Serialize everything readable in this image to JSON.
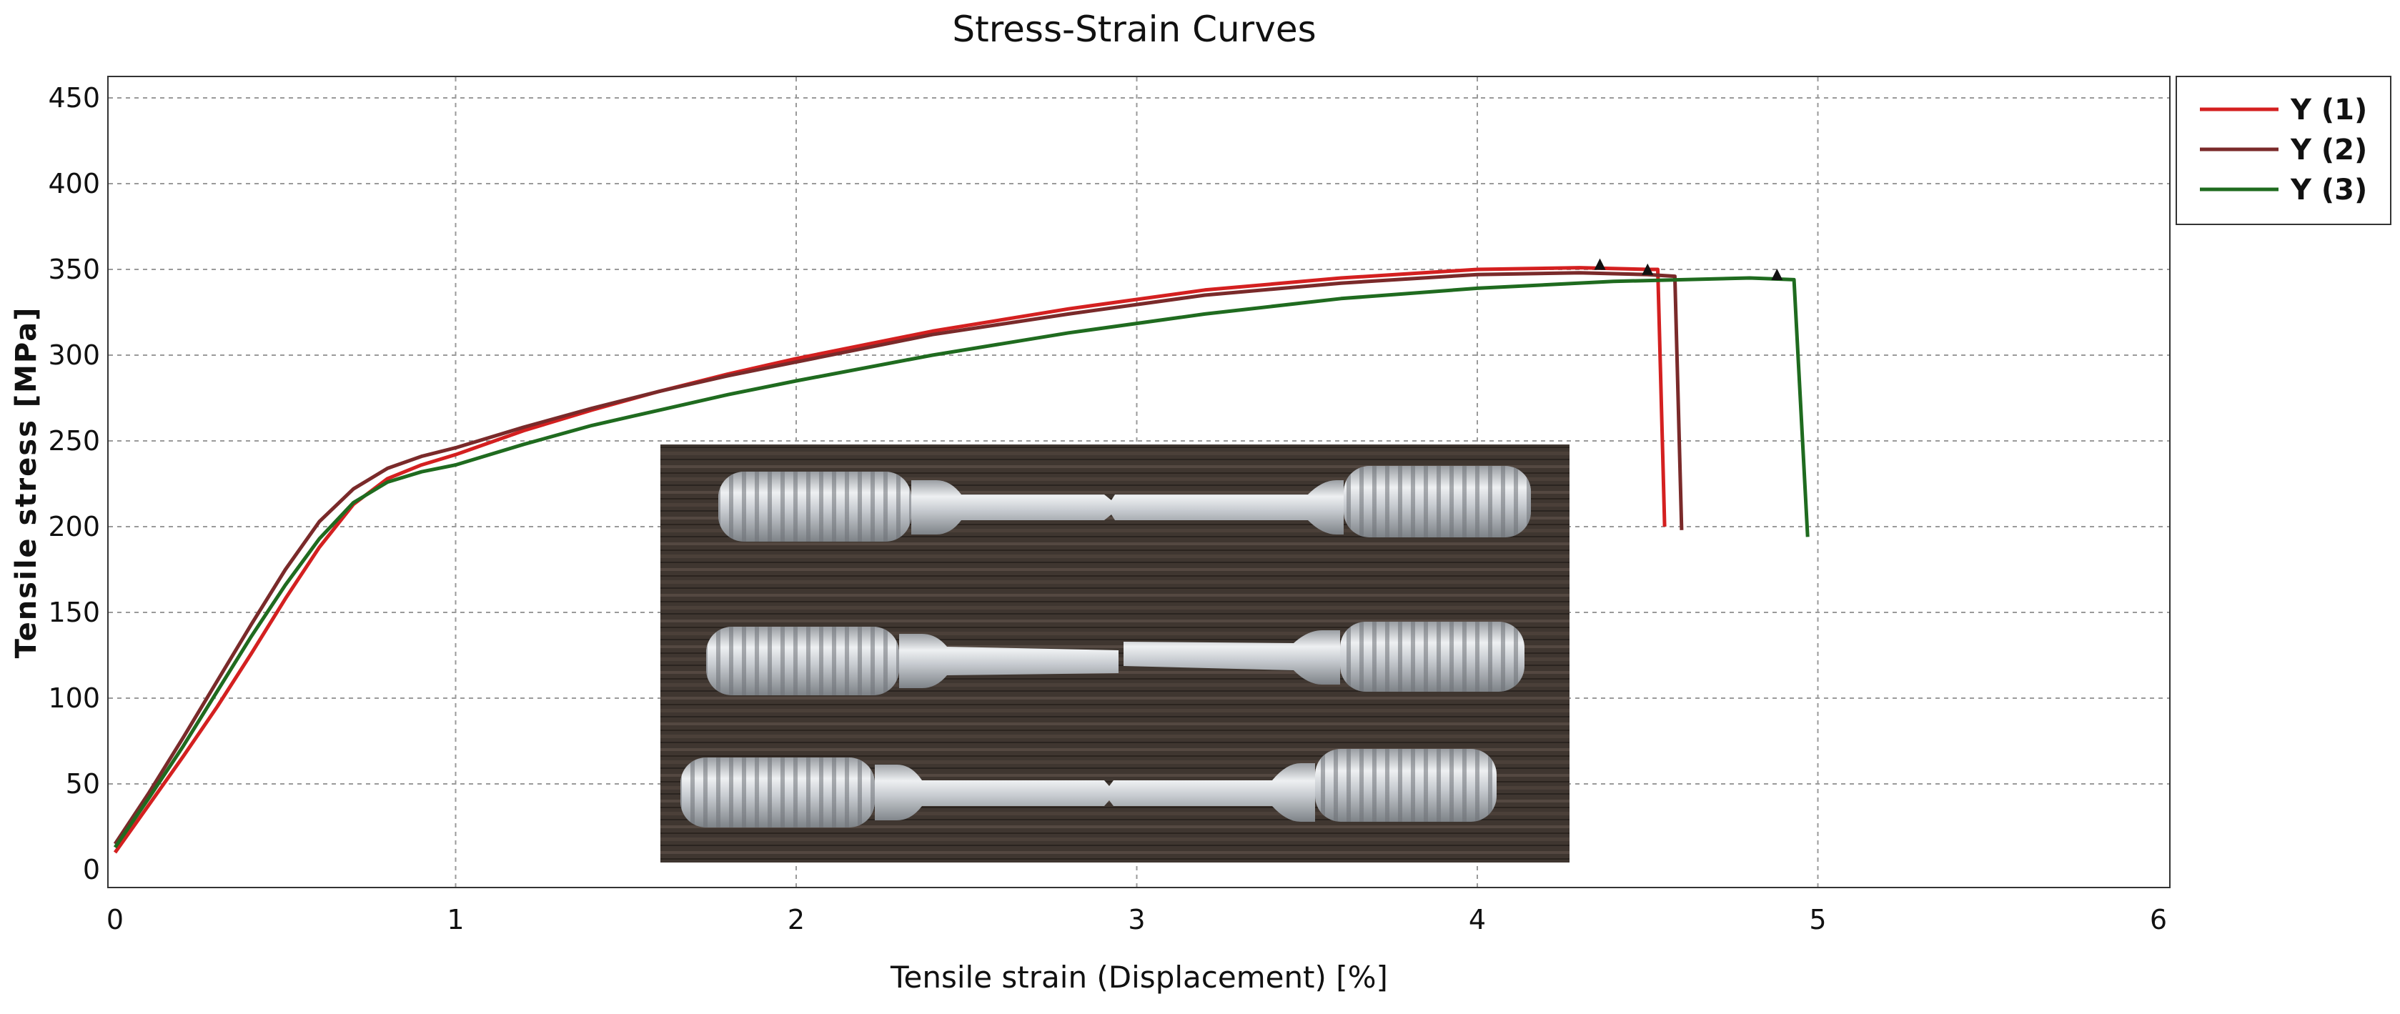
{
  "chart_data": {
    "type": "line",
    "title": "Stress-Strain Curves",
    "xlabel": "Tensile strain (Displacement) [%]",
    "ylabel": "Tensile stress [MPa]",
    "xlim": [
      0,
      6
    ],
    "ylim": [
      0,
      460
    ],
    "x_ticks": [
      "0",
      "1",
      "2",
      "3",
      "4",
      "5",
      "6"
    ],
    "y_ticks": [
      "0",
      "50",
      "100",
      "150",
      "200",
      "250",
      "300",
      "350",
      "400",
      "450"
    ],
    "grid": true,
    "legend_position": "outside-right-top",
    "inset": "photograph of three fractured threaded tensile specimens labelled 1, 2, 3",
    "series": [
      {
        "name": "Y (1)",
        "color": "#d42020",
        "x": [
          0,
          0.1,
          0.2,
          0.3,
          0.4,
          0.5,
          0.6,
          0.7,
          0.8,
          0.9,
          1.0,
          1.2,
          1.4,
          1.6,
          1.8,
          2.0,
          2.4,
          2.8,
          3.2,
          3.6,
          4.0,
          4.3,
          4.5,
          4.53,
          4.55
        ],
        "y": [
          10,
          38,
          66,
          95,
          126,
          158,
          188,
          213,
          228,
          236,
          242,
          256,
          268,
          279,
          289,
          298,
          314,
          327,
          338,
          345,
          350,
          351,
          350,
          350,
          200
        ],
        "max_marker": [
          4.36,
          351
        ]
      },
      {
        "name": "Y (2)",
        "color": "#7a2a2a",
        "x": [
          0,
          0.1,
          0.2,
          0.3,
          0.4,
          0.5,
          0.6,
          0.7,
          0.8,
          0.9,
          1.0,
          1.2,
          1.4,
          1.6,
          1.8,
          2.0,
          2.4,
          2.8,
          3.2,
          3.6,
          4.0,
          4.3,
          4.5,
          4.58,
          4.6
        ],
        "y": [
          15,
          45,
          77,
          110,
          143,
          175,
          203,
          222,
          234,
          241,
          246,
          258,
          269,
          279,
          288,
          296,
          312,
          324,
          335,
          342,
          347,
          348,
          347,
          346,
          198
        ],
        "max_marker": [
          4.5,
          348
        ]
      },
      {
        "name": "Y (3)",
        "color": "#1f6b1f",
        "x": [
          0,
          0.1,
          0.2,
          0.3,
          0.4,
          0.5,
          0.6,
          0.7,
          0.8,
          0.9,
          1.0,
          1.2,
          1.4,
          1.6,
          1.8,
          2.0,
          2.4,
          2.8,
          3.2,
          3.6,
          4.0,
          4.4,
          4.8,
          4.93,
          4.97
        ],
        "y": [
          13,
          42,
          72,
          104,
          136,
          166,
          193,
          214,
          226,
          232,
          236,
          248,
          259,
          268,
          277,
          285,
          300,
          313,
          324,
          333,
          339,
          343,
          345,
          344,
          194
        ],
        "max_marker": [
          4.88,
          345
        ]
      }
    ]
  }
}
